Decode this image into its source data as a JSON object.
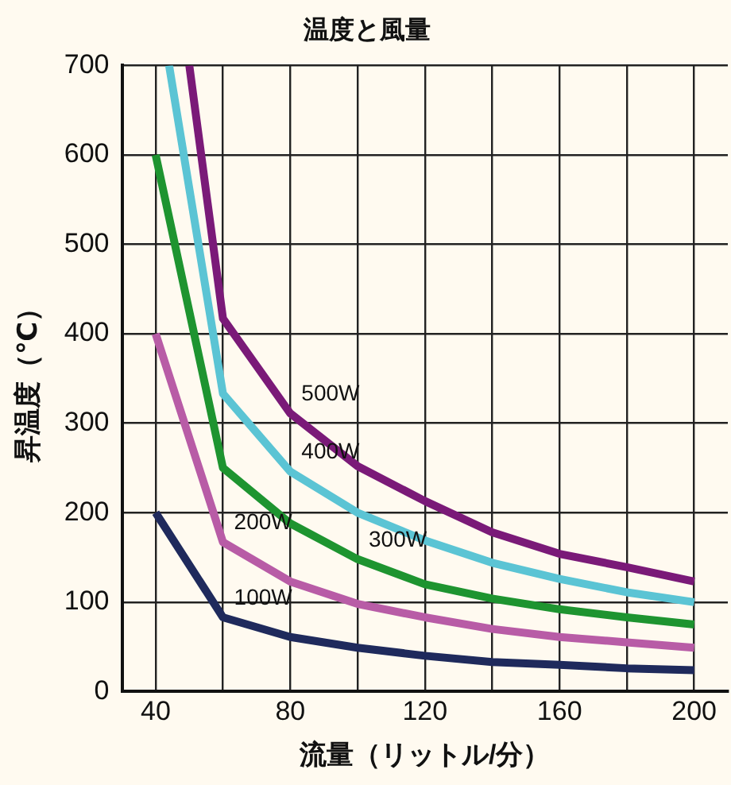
{
  "chart_data": {
    "type": "line",
    "title": "温度と風量",
    "xlabel": "流量（リットル/分）",
    "ylabel": "昇温度（℃）",
    "xlim": [
      30,
      210
    ],
    "xticks": [
      40,
      {
        "value": 60,
        "label": null
      },
      80,
      {
        "value": 100,
        "label": null
      },
      120,
      {
        "value": 140,
        "label": null
      },
      160,
      {
        "value": 180,
        "label": null
      },
      200
    ],
    "ylim": [
      0,
      700
    ],
    "yticks": [
      0,
      100,
      200,
      300,
      400,
      500,
      600,
      700
    ],
    "grid": true,
    "legend": false,
    "marker": "none",
    "line_style": "solid",
    "series": [
      {
        "color": "#1f2a5c",
        "x": [
          40,
          60,
          80,
          100,
          120,
          140,
          160,
          180,
          200
        ],
        "values": [
          200,
          83,
          61,
          49,
          40,
          33,
          30,
          26,
          24
        ]
      },
      {
        "color": "#b85ca6",
        "x": [
          40,
          60,
          80,
          100,
          120,
          140,
          160,
          180,
          200
        ],
        "values": [
          400,
          167,
          123,
          98,
          83,
          70,
          61,
          55,
          49
        ]
      },
      {
        "color": "#1e9430",
        "x": [
          40,
          60,
          80,
          100,
          120,
          140,
          160,
          180,
          200
        ],
        "values": [
          600,
          250,
          188,
          148,
          120,
          104,
          92,
          83,
          75
        ]
      },
      {
        "color": "#5bc4d4",
        "x": [
          44,
          60,
          80,
          100,
          120,
          140,
          160,
          180,
          200
        ],
        "values": [
          700,
          333,
          246,
          200,
          169,
          144,
          126,
          111,
          100
        ]
      },
      {
        "color": "#7a1a78",
        "x": [
          50,
          60,
          80,
          100,
          120,
          140,
          160,
          180,
          200
        ],
        "values": [
          700,
          417,
          311,
          252,
          213,
          178,
          154,
          139,
          123
        ]
      }
    ],
    "annotations": [
      {
        "text": "100W",
        "x": 60,
        "y": 83
      },
      {
        "text": "200W",
        "x": 60,
        "y": 167
      },
      {
        "text": "300W",
        "x": 100,
        "y": 148
      },
      {
        "text": "400W",
        "x": 80,
        "y": 246
      },
      {
        "text": "500W",
        "x": 80,
        "y": 311
      }
    ]
  }
}
